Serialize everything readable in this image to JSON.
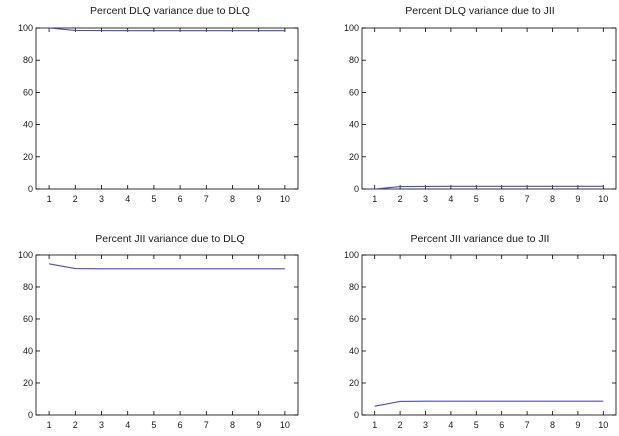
{
  "figure": {
    "background": "#ffffff",
    "line_color": "#4b4bcf"
  },
  "chart_data": [
    {
      "type": "line",
      "title": "Percent DLQ variance due to DLQ",
      "x": [
        1,
        2,
        3,
        4,
        5,
        6,
        7,
        8,
        9,
        10
      ],
      "series": [
        {
          "values": [
            100,
            98.5,
            98.4,
            98.3,
            98.3,
            98.3,
            98.3,
            98.3,
            98.3,
            98.3
          ]
        }
      ],
      "xlim": [
        0.5,
        10.5
      ],
      "ylim": [
        0,
        100
      ],
      "yticks": [
        "0",
        "20",
        "40",
        "60",
        "80",
        "100"
      ],
      "xticks": [
        "1",
        "2",
        "3",
        "4",
        "5",
        "6",
        "7",
        "8",
        "9",
        "10"
      ],
      "grid": false,
      "legend": "none"
    },
    {
      "type": "line",
      "title": "Percent DLQ variance due to JII",
      "x": [
        1,
        2,
        3,
        4,
        5,
        6,
        7,
        8,
        9,
        10
      ],
      "series": [
        {
          "values": [
            0,
            1.5,
            1.6,
            1.7,
            1.7,
            1.7,
            1.7,
            1.7,
            1.7,
            1.7
          ]
        }
      ],
      "xlim": [
        0.5,
        10.5
      ],
      "ylim": [
        0,
        100
      ],
      "yticks": [
        "0",
        "20",
        "40",
        "60",
        "80",
        "100"
      ],
      "xticks": [
        "1",
        "2",
        "3",
        "4",
        "5",
        "6",
        "7",
        "8",
        "9",
        "10"
      ],
      "grid": false,
      "legend": "none"
    },
    {
      "type": "line",
      "title": "Percent JII variance due to DLQ",
      "x": [
        1,
        2,
        3,
        4,
        5,
        6,
        7,
        8,
        9,
        10
      ],
      "series": [
        {
          "values": [
            94.5,
            91.5,
            91.4,
            91.4,
            91.4,
            91.4,
            91.4,
            91.4,
            91.4,
            91.4
          ]
        }
      ],
      "xlim": [
        0.5,
        10.5
      ],
      "ylim": [
        0,
        100
      ],
      "yticks": [
        "0",
        "20",
        "40",
        "60",
        "80",
        "100"
      ],
      "xticks": [
        "1",
        "2",
        "3",
        "4",
        "5",
        "6",
        "7",
        "8",
        "9",
        "10"
      ],
      "grid": false,
      "legend": "none"
    },
    {
      "type": "line",
      "title": "Percent JII variance due to JII",
      "x": [
        1,
        2,
        3,
        4,
        5,
        6,
        7,
        8,
        9,
        10
      ],
      "series": [
        {
          "values": [
            5.5,
            8.5,
            8.6,
            8.6,
            8.6,
            8.6,
            8.6,
            8.6,
            8.6,
            8.6
          ]
        }
      ],
      "xlim": [
        0.5,
        10.5
      ],
      "ylim": [
        0,
        100
      ],
      "yticks": [
        "0",
        "20",
        "40",
        "60",
        "80",
        "100"
      ],
      "xticks": [
        "1",
        "2",
        "3",
        "4",
        "5",
        "6",
        "7",
        "8",
        "9",
        "10"
      ],
      "grid": false,
      "legend": "none"
    }
  ]
}
